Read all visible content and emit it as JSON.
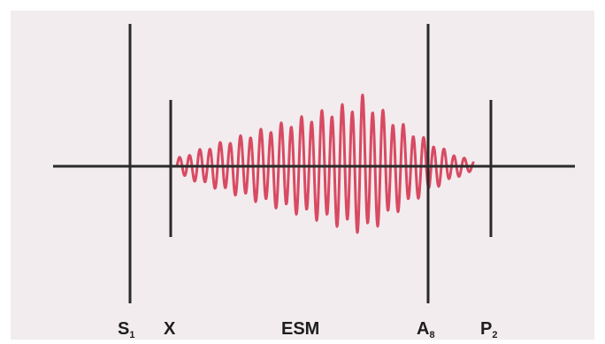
{
  "colors": {
    "background": "#ffffff",
    "panel": "#f2ecee",
    "line": "#2a2a2a",
    "wave": "#d84a62"
  },
  "labels": {
    "s1": {
      "main": "S",
      "sub": "1"
    },
    "x": {
      "main": "X"
    },
    "esm": {
      "main": "ESM"
    },
    "a8": {
      "main": "A",
      "sub": "8"
    },
    "p2": {
      "main": "P",
      "sub": "2"
    }
  }
}
